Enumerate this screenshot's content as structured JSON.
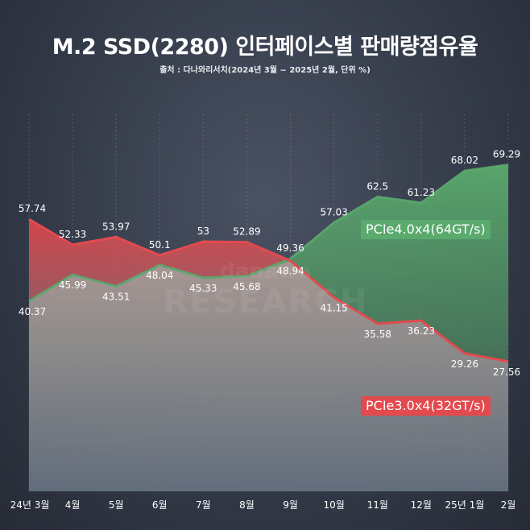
{
  "chart_data": {
    "type": "area",
    "title": "M.2 SSD(2280) 인터페이스별 판매량점유율",
    "subtitle": "출처 : 다나와리서치(2024년 3월 ~ 2025년 2월, 단위 %)",
    "categories": [
      "24년 3월",
      "4월",
      "5월",
      "6월",
      "7월",
      "8월",
      "9월",
      "10월",
      "11월",
      "12월",
      "25년 1월",
      "2월"
    ],
    "series": [
      {
        "name": "PCIe3.0x4(32GT/s)",
        "color": "#e24a4e",
        "values": [
          57.74,
          52.33,
          53.97,
          50.1,
          53,
          52.89,
          48.94,
          41.15,
          35.58,
          36.23,
          29.26,
          27.56
        ]
      },
      {
        "name": "PCIe4.0x4(64GT/s)",
        "color": "#5aa96d",
        "values": [
          40.37,
          45.99,
          43.51,
          48.04,
          45.33,
          45.68,
          49.36,
          57.03,
          62.5,
          61.23,
          68.02,
          69.29
        ]
      }
    ],
    "ylim": [
      0,
      80
    ],
    "grid": true,
    "xlabel": "",
    "ylabel": "",
    "watermark": [
      "danawa",
      "RESEARCH"
    ]
  }
}
